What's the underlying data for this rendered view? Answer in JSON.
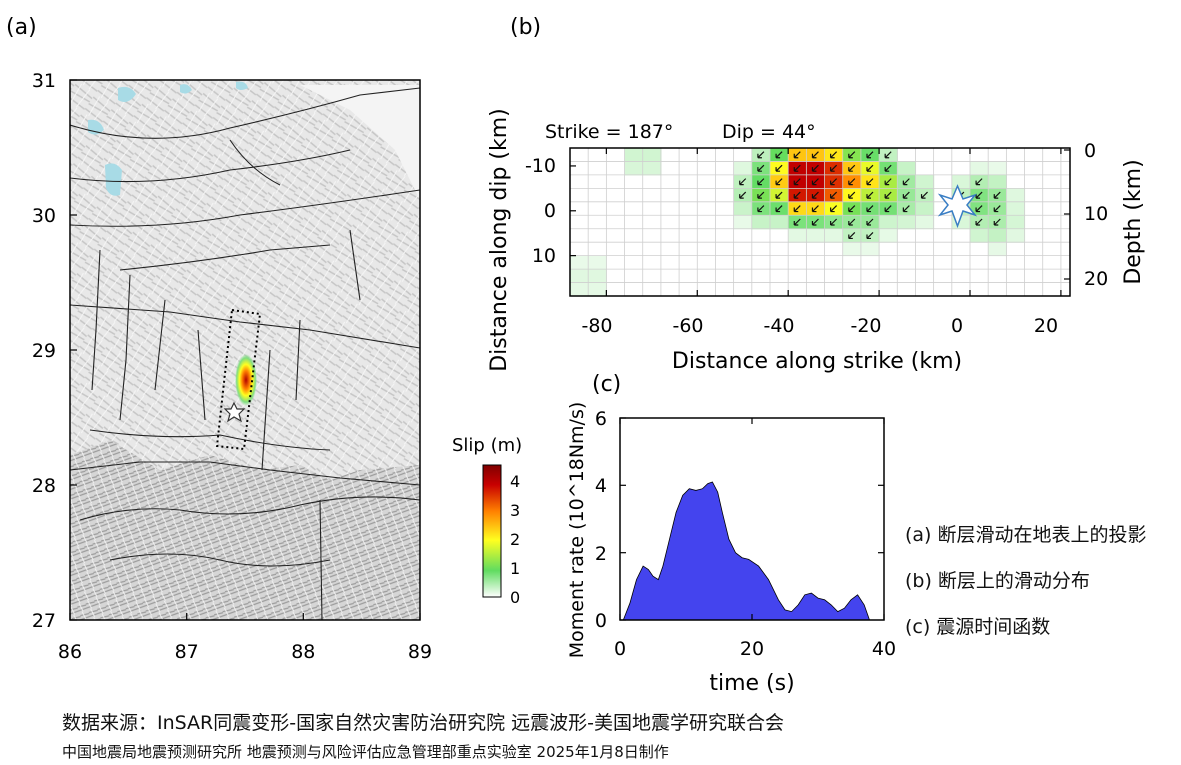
{
  "panel_labels": {
    "a": "(a)",
    "b": "(b)",
    "c": "(c)"
  },
  "map": {
    "xticks": [
      "86",
      "87",
      "88",
      "89"
    ],
    "yticks": [
      "31",
      "30",
      "29",
      "28",
      "27"
    ],
    "epicenter_marker": "star-icon"
  },
  "colorbar": {
    "title": "Slip (m)",
    "ticks": [
      "4",
      "3",
      "2",
      "1",
      "0"
    ],
    "range": [
      0,
      4.6
    ],
    "colors": [
      "#ffffff",
      "#60dc60",
      "#ffff20",
      "#ff8000",
      "#c80000",
      "#800000"
    ]
  },
  "fault": {
    "strike_label": "Strike = 187°",
    "dip_label": "Dip = 44°",
    "xlabel": "Distance along strike (km)",
    "ylabel": "Distance along dip (km)",
    "right_label": "Depth (km)",
    "xticks": [
      "-80",
      "-60",
      "-40",
      "-20",
      "0",
      "20"
    ],
    "yticks": [
      "-10",
      "0",
      "10"
    ],
    "depth_ticks": [
      "0",
      "10",
      "20"
    ],
    "hypocenter_marker": "star-icon"
  },
  "chart_data": [
    {
      "type": "heatmap",
      "panel": "b",
      "title": "Strike = 187°  Dip = 44°",
      "xlabel": "Distance along strike (km)",
      "ylabel": "Distance along dip (km)",
      "xlim": [
        -88,
        22
      ],
      "ylim": [
        -14,
        19
      ],
      "cell_size_km": 4,
      "hypocenter": [
        0,
        0
      ],
      "slip_patches": [
        {
          "x": -36,
          "y": -8,
          "slip": 4.5
        },
        {
          "x": -32,
          "y": -8,
          "slip": 4.0
        },
        {
          "x": -36,
          "y": -5,
          "slip": 4.2
        },
        {
          "x": -32,
          "y": -5,
          "slip": 3.6
        },
        {
          "x": -28,
          "y": -7,
          "slip": 3.0
        },
        {
          "x": -24,
          "y": -7,
          "slip": 2.3
        },
        {
          "x": -40,
          "y": -7,
          "slip": 2.5
        },
        {
          "x": -20,
          "y": -5,
          "slip": 1.6
        },
        {
          "x": -44,
          "y": -4,
          "slip": 1.2
        },
        {
          "x": -28,
          "y": -3,
          "slip": 1.4
        },
        {
          "x": -24,
          "y": 1,
          "slip": 0.7
        },
        {
          "x": -14,
          "y": -3,
          "slip": 0.6
        },
        {
          "x": 3,
          "y": -2,
          "slip": 0.8
        },
        {
          "x": 5,
          "y": 2,
          "slip": 0.5
        },
        {
          "x": -72,
          "y": -12,
          "slip": 0.3
        },
        {
          "x": -84,
          "y": 15,
          "slip": 0.2
        }
      ]
    },
    {
      "type": "area",
      "panel": "c",
      "title": "",
      "xlabel": "time (s)",
      "ylabel": "Moment rate (10^18Nm/s)",
      "xlim": [
        0,
        40
      ],
      "ylim": [
        0,
        6
      ],
      "xticks": [
        "0",
        "20",
        "40"
      ],
      "yticks": [
        "0",
        "2",
        "4",
        "6"
      ],
      "color": "#4444ee",
      "x": [
        0.5,
        1.5,
        2.5,
        3.5,
        4.3,
        5.0,
        5.8,
        6.5,
        7.5,
        8.5,
        9.5,
        10.5,
        11.5,
        12.5,
        13.3,
        14.0,
        14.8,
        15.5,
        16.5,
        17.5,
        18.5,
        19.5,
        21.0,
        22.5,
        24.0,
        25.0,
        26.0,
        27.0,
        28.0,
        29.0,
        30.0,
        31.0,
        32.0,
        33.0,
        34.0,
        35.0,
        36.0,
        37.0,
        37.8
      ],
      "y": [
        0.0,
        0.5,
        1.2,
        1.6,
        1.5,
        1.3,
        1.2,
        1.6,
        2.4,
        3.2,
        3.7,
        3.9,
        3.85,
        3.9,
        4.05,
        4.1,
        3.8,
        3.2,
        2.4,
        2.0,
        1.85,
        1.8,
        1.6,
        1.2,
        0.6,
        0.3,
        0.25,
        0.45,
        0.75,
        0.8,
        0.65,
        0.6,
        0.45,
        0.25,
        0.35,
        0.6,
        0.75,
        0.45,
        0.0
      ]
    }
  ],
  "notes": [
    "(a) 断层滑动在地表上的投影",
    "(b) 断层上的滑动分布",
    "(c) 震源时间函数"
  ],
  "source": {
    "line1": "数据来源：InSAR同震变形-国家自然灾害防治研究院   远震波形-美国地震学研究联合会",
    "line2": "中国地震局地震预测研究所      地震预测与风险评估应急管理部重点实验室 2025年1月8日制作"
  }
}
